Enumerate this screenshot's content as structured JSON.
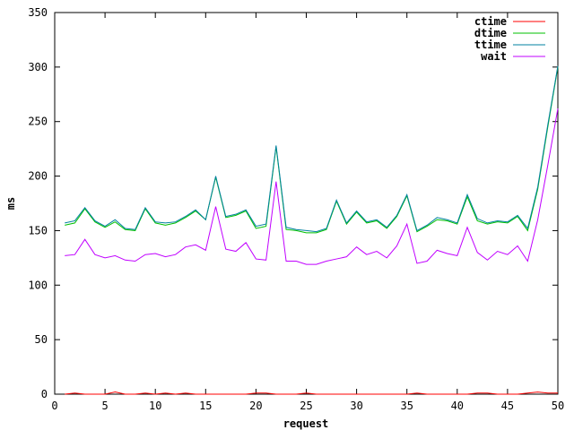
{
  "chart_data": {
    "type": "line",
    "xlabel": "request",
    "ylabel": "ms",
    "xlim": [
      0,
      50
    ],
    "ylim": [
      0,
      350
    ],
    "x_ticks": [
      0,
      5,
      10,
      15,
      20,
      25,
      30,
      35,
      40,
      45,
      50
    ],
    "y_ticks": [
      0,
      50,
      100,
      150,
      200,
      250,
      300,
      350
    ],
    "legend_position": "top-right",
    "grid": false,
    "x": [
      1,
      2,
      3,
      4,
      5,
      6,
      7,
      8,
      9,
      10,
      11,
      12,
      13,
      14,
      15,
      16,
      17,
      18,
      19,
      20,
      21,
      22,
      23,
      24,
      25,
      26,
      27,
      28,
      29,
      30,
      31,
      32,
      33,
      34,
      35,
      36,
      37,
      38,
      39,
      40,
      41,
      42,
      43,
      44,
      45,
      46,
      47,
      48,
      49,
      50
    ],
    "series": [
      {
        "name": "ctime",
        "color": "#ff0000",
        "values": [
          0,
          1,
          0,
          0,
          0,
          2,
          0,
          0,
          1,
          0,
          1,
          0,
          1,
          0,
          0,
          0,
          0,
          0,
          0,
          1,
          1,
          0,
          0,
          0,
          1,
          0,
          0,
          0,
          0,
          0,
          0,
          0,
          0,
          0,
          0,
          1,
          0,
          0,
          0,
          0,
          0,
          1,
          1,
          0,
          0,
          0,
          1,
          2,
          1,
          1
        ]
      },
      {
        "name": "dtime",
        "color": "#00c000",
        "values": [
          155,
          157,
          170,
          158,
          153,
          158,
          151,
          150,
          170,
          157,
          155,
          157,
          162,
          168,
          160,
          199,
          162,
          164,
          168,
          152,
          154,
          227,
          151,
          150,
          148,
          148,
          151,
          177,
          156,
          167,
          157,
          159,
          152,
          163,
          182,
          149,
          154,
          160,
          159,
          156,
          181,
          159,
          156,
          158,
          157,
          163,
          150,
          188,
          245,
          300
        ]
      },
      {
        "name": "ttime",
        "color": "#0080a0",
        "values": [
          157,
          159,
          171,
          159,
          154,
          160,
          152,
          151,
          171,
          158,
          157,
          158,
          163,
          169,
          160,
          200,
          163,
          165,
          169,
          154,
          156,
          228,
          153,
          151,
          150,
          149,
          152,
          178,
          157,
          168,
          158,
          160,
          153,
          164,
          183,
          150,
          155,
          162,
          160,
          157,
          183,
          161,
          157,
          159,
          158,
          164,
          152,
          190,
          247,
          301
        ]
      },
      {
        "name": "wait",
        "color": "#c000ff",
        "values": [
          127,
          128,
          142,
          128,
          125,
          127,
          123,
          122,
          128,
          129,
          126,
          128,
          135,
          137,
          132,
          172,
          133,
          131,
          139,
          124,
          123,
          195,
          122,
          122,
          119,
          119,
          122,
          124,
          126,
          135,
          128,
          131,
          125,
          136,
          156,
          120,
          122,
          132,
          129,
          127,
          153,
          130,
          123,
          131,
          128,
          136,
          122,
          160,
          210,
          262
        ]
      }
    ]
  }
}
